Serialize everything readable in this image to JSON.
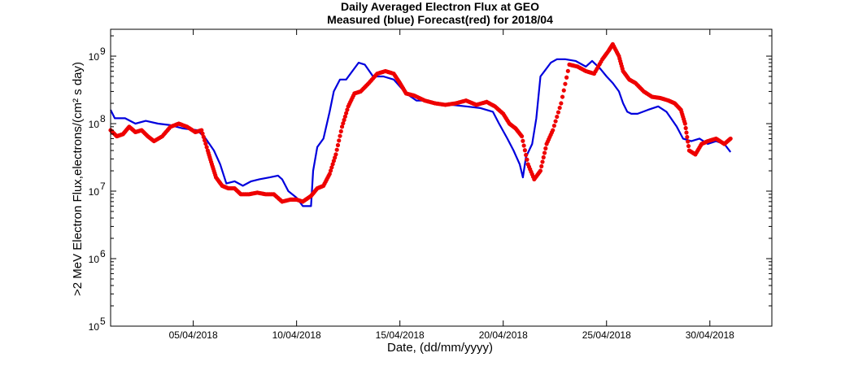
{
  "chart_data": {
    "type": "line",
    "title": "Daily Averaged Electron Flux at GEO",
    "subtitle": "Measured (blue) Forecast(red) for 2018/04",
    "xlabel": "Date, (dd/mm/yyyy)",
    "ylabel": ">2 MeV Electron Flux,electrons/(cm² s day)",
    "x_ticks": [
      "05/04/2018",
      "10/04/2018",
      "15/04/2018",
      "20/04/2018",
      "25/04/2018",
      "30/04/2018"
    ],
    "x_tick_values": [
      5,
      10,
      15,
      20,
      25,
      30
    ],
    "xlim": [
      1,
      33
    ],
    "y_scale": "log",
    "ylim": [
      100000,
      2500000000
    ],
    "y_ticks": [
      {
        "base": "10",
        "exp": "5",
        "value": 100000
      },
      {
        "base": "10",
        "exp": "6",
        "value": 1000000
      },
      {
        "base": "10",
        "exp": "7",
        "value": 10000000
      },
      {
        "base": "10",
        "exp": "8",
        "value": 100000000
      },
      {
        "base": "10",
        "exp": "9",
        "value": 1000000000
      }
    ],
    "grid": false,
    "series": [
      {
        "name": "Measured",
        "color": "#0000dd",
        "style": "line",
        "x": [
          1,
          1.2,
          1.7,
          2.2,
          2.7,
          3.3,
          3.9,
          4.5,
          5.2,
          5.6,
          6.0,
          6.3,
          6.6,
          7.0,
          7.4,
          7.8,
          8.2,
          8.7,
          9.1,
          9.3,
          9.6,
          10.0,
          10.3,
          10.7,
          10.8,
          11.0,
          11.3,
          11.6,
          11.8,
          12.1,
          12.4,
          12.7,
          13.0,
          13.3,
          13.7,
          14.2,
          14.7,
          15.3,
          15.8,
          16.3,
          16.9,
          17.5,
          18.2,
          18.9,
          19.5,
          19.8,
          20.2,
          20.5,
          20.8,
          20.95,
          21.1,
          21.25,
          21.4,
          21.6,
          21.8,
          22.0,
          22.3,
          22.6,
          23.0,
          23.5,
          24.0,
          24.3,
          24.7,
          25.0,
          25.3,
          25.6,
          25.8,
          26.0,
          26.2,
          26.5,
          27.0,
          27.5,
          27.9,
          28.4,
          28.7,
          29.1,
          29.5,
          29.9,
          30.3,
          30.7,
          31.0
        ],
        "y": [
          160000000.0,
          120000000.0,
          120000000.0,
          100000000.0,
          110000000.0,
          100000000.0,
          95000000.0,
          85000000.0,
          80000000.0,
          60000000.0,
          40000000.0,
          25000000.0,
          13000000.0,
          14000000.0,
          12000000.0,
          14000000.0,
          15000000.0,
          16000000.0,
          17000000.0,
          15000000.0,
          10000000.0,
          8000000.0,
          6000000.0,
          6000000.0,
          20000000.0,
          45000000.0,
          60000000.0,
          150000000.0,
          300000000.0,
          450000000.0,
          450000000.0,
          600000000.0,
          800000000.0,
          750000000.0,
          500000000.0,
          500000000.0,
          450000000.0,
          280000000.0,
          220000000.0,
          220000000.0,
          200000000.0,
          190000000.0,
          180000000.0,
          170000000.0,
          150000000.0,
          100000000.0,
          60000000.0,
          40000000.0,
          25000000.0,
          16000000.0,
          32000000.0,
          40000000.0,
          50000000.0,
          120000000.0,
          500000000.0,
          600000000.0,
          800000000.0,
          900000000.0,
          900000000.0,
          850000000.0,
          700000000.0,
          850000000.0,
          650000000.0,
          500000000.0,
          400000000.0,
          300000000.0,
          200000000.0,
          150000000.0,
          140000000.0,
          140000000.0,
          160000000.0,
          180000000.0,
          150000000.0,
          90000000.0,
          60000000.0,
          55000000.0,
          60000000.0,
          50000000.0,
          55000000.0,
          50000000.0,
          38000000.0
        ]
      },
      {
        "name": "Forecast",
        "color": "#ee0000",
        "style": "markers",
        "x": [
          1,
          1.3,
          1.6,
          1.9,
          2.2,
          2.5,
          2.8,
          3.1,
          3.5,
          3.9,
          4.3,
          4.7,
          5.1,
          5.4,
          5.7,
          5.9,
          6.1,
          6.4,
          6.7,
          7.0,
          7.3,
          7.7,
          8.1,
          8.5,
          8.9,
          9.3,
          9.7,
          10.0,
          10.3,
          10.7,
          11.0,
          11.3,
          11.6,
          11.9,
          12.2,
          12.5,
          12.8,
          13.1,
          13.5,
          13.9,
          14.3,
          14.7,
          15.0,
          15.3,
          15.7,
          16.2,
          16.7,
          17.2,
          17.7,
          18.2,
          18.7,
          19.2,
          19.6,
          20.0,
          20.3,
          20.6,
          20.9,
          21.2,
          21.5,
          21.8,
          22.1,
          22.4,
          22.8,
          23.2,
          23.6,
          24.0,
          24.4,
          24.8,
          25.1,
          25.3,
          25.6,
          25.8,
          26.1,
          26.4,
          26.8,
          27.2,
          27.6,
          28.0,
          28.3,
          28.6,
          28.8,
          29.0,
          29.3,
          29.6,
          29.9,
          30.3,
          30.7,
          31.0
        ],
        "y": [
          80000000.0,
          65000000.0,
          70000000.0,
          90000000.0,
          75000000.0,
          80000000.0,
          65000000.0,
          55000000.0,
          65000000.0,
          90000000.0,
          100000000.0,
          90000000.0,
          75000000.0,
          80000000.0,
          40000000.0,
          25000000.0,
          16000000.0,
          12000000.0,
          11000000.0,
          11000000.0,
          9000000.0,
          9000000.0,
          9500000.0,
          9000000.0,
          9000000.0,
          7000000.0,
          7500000.0,
          7500000.0,
          7000000.0,
          8500000.0,
          11000000.0,
          12000000.0,
          18000000.0,
          35000000.0,
          90000000.0,
          180000000.0,
          280000000.0,
          300000000.0,
          400000000.0,
          550000000.0,
          600000000.0,
          550000000.0,
          400000000.0,
          280000000.0,
          260000000.0,
          220000000.0,
          200000000.0,
          190000000.0,
          200000000.0,
          220000000.0,
          190000000.0,
          210000000.0,
          180000000.0,
          140000000.0,
          100000000.0,
          85000000.0,
          65000000.0,
          25000000.0,
          15000000.0,
          20000000.0,
          50000000.0,
          80000000.0,
          200000000.0,
          750000000.0,
          700000000.0,
          600000000.0,
          550000000.0,
          900000000.0,
          1200000000.0,
          1500000000.0,
          1000000000.0,
          600000000.0,
          450000000.0,
          400000000.0,
          300000000.0,
          250000000.0,
          240000000.0,
          220000000.0,
          200000000.0,
          160000000.0,
          100000000.0,
          40000000.0,
          35000000.0,
          50000000.0,
          55000000.0,
          60000000.0,
          50000000.0,
          60000000.0
        ]
      }
    ]
  }
}
